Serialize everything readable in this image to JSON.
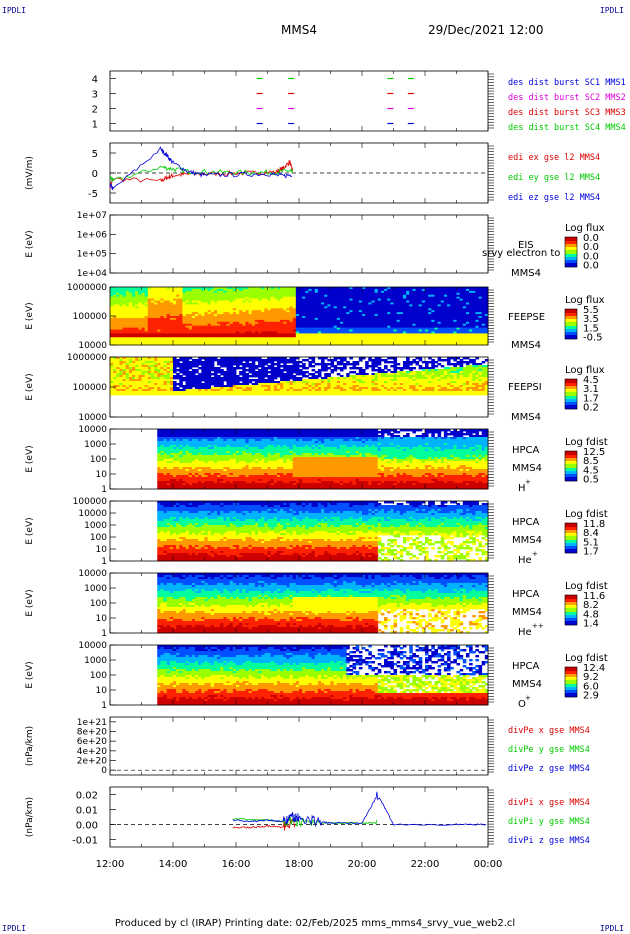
{
  "corners": {
    "top_left": "IPDLI",
    "top_right": "IPDLI",
    "bottom_left": "IPDLI",
    "bottom_right": "IPDLI"
  },
  "header": {
    "spacecraft": "MMS4",
    "datetime": "29/Dec/2021 12:00"
  },
  "footer": {
    "text": "Produced by cl (IRAP)    Printing date: 02/Feb/2025    mms_mms4_srvy_vue_web2.cl"
  },
  "colors": {
    "red": "#dd0000",
    "magenta": "#dd00dd",
    "green": "#00cc00",
    "blue": "#0000dd",
    "spectral": [
      "#0000cc",
      "#0050ff",
      "#00b4ff",
      "#00ff9a",
      "#9aff00",
      "#ffff00",
      "#ff9900",
      "#ff2200",
      "#cc0000"
    ]
  },
  "chart_data": [
    {
      "type": "scatter",
      "panel": "burst",
      "yticks": [
        "1",
        "2",
        "3",
        "4"
      ],
      "ylim": [
        0.5,
        4.5
      ],
      "xlim": [
        12,
        24
      ],
      "series": [
        {
          "name": "des dist burst SC1 MMS1",
          "color": "#0000dd",
          "y": 1,
          "x": [
            16.75,
            17.75,
            20.9,
            21.55
          ]
        },
        {
          "name": "des dist burst SC2 MMS2",
          "color": "#dd00dd",
          "y": 2,
          "x": [
            16.75,
            17.75,
            20.9,
            21.55
          ]
        },
        {
          "name": "des dist burst SC3 MMS3",
          "color": "#dd0000",
          "y": 3,
          "x": [
            16.75,
            17.75,
            20.9,
            21.55
          ]
        },
        {
          "name": "des dist burst SC4 MMS4",
          "color": "#00cc00",
          "y": 4,
          "x": [
            16.75,
            17.75,
            20.9,
            21.55
          ]
        }
      ]
    },
    {
      "type": "line",
      "panel": "edi",
      "ylabel": "(mV/m)",
      "yticks": [
        "5",
        "0",
        "-5"
      ],
      "ylim": [
        -7.5,
        7.5
      ],
      "xlim": [
        12,
        24
      ],
      "series": [
        {
          "name": "edi ex gse l2 MMS4",
          "color": "#dd0000",
          "x": [
            12.0,
            12.1,
            13.6,
            13.8,
            14.0,
            14.5,
            15.5,
            16.5,
            17.3,
            17.5,
            17.7,
            17.8
          ],
          "y": [
            -3.5,
            -1.5,
            -2.0,
            -1.2,
            -0.6,
            -0.3,
            -0.1,
            0.0,
            0.3,
            1.2,
            2.8,
            0.4
          ]
        },
        {
          "name": "edi ey gse l2 MMS4",
          "color": "#00cc00",
          "x": [
            12.0,
            12.1,
            13.6,
            14.0,
            14.5,
            15.5,
            16.5,
            17.3,
            17.7,
            17.8
          ],
          "y": [
            -1.0,
            -2.0,
            1.5,
            1.0,
            0.4,
            0.2,
            0.1,
            0.2,
            0.6,
            0.0
          ]
        },
        {
          "name": "edi ez gse l2 MMS4",
          "color": "#0000dd",
          "x": [
            12.0,
            12.1,
            13.6,
            13.8,
            14.0,
            14.5,
            15.0,
            16.0,
            17.0,
            17.5,
            17.8
          ],
          "y": [
            -3.0,
            -4.0,
            6.0,
            4.5,
            2.5,
            0.3,
            -0.6,
            -0.4,
            -0.2,
            -0.8,
            -0.3
          ]
        }
      ]
    },
    {
      "type": "heatmap",
      "panel": "eis",
      "ylabel": "E (eV)",
      "yticks": [
        "1e+07",
        "1e+06",
        "1e+05",
        "1e+04"
      ],
      "logrange": [
        4,
        7
      ],
      "data_xlim": null,
      "labels": [
        "EIS",
        "srvy electron to",
        "MMS4"
      ],
      "cbar_title": "Log flux",
      "cbar_ticks": [
        "0.0",
        "0.0",
        "0.0",
        "0.0"
      ],
      "xlim": [
        12,
        24
      ]
    },
    {
      "type": "heatmap",
      "panel": "feepse",
      "ylabel": "E (eV)",
      "yticks": [
        "1000000",
        "100000",
        "10000"
      ],
      "logrange": [
        4,
        6
      ],
      "data_xlim": [
        12,
        24
      ],
      "labels": [
        "FEEPSE",
        "MMS4"
      ],
      "cbar_title": "Log flux",
      "cbar_ticks": [
        "5.5",
        "3.5",
        "1.5",
        "-0.5"
      ],
      "xlim": [
        12,
        24
      ]
    },
    {
      "type": "heatmap",
      "panel": "feepsi",
      "ylabel": "E (eV)",
      "yticks": [
        "1000000",
        "100000",
        "10000"
      ],
      "logrange": [
        4,
        6
      ],
      "data_xlim": [
        12,
        24
      ],
      "labels": [
        "FEEPSI",
        "MMS4"
      ],
      "cbar_title": "Log flux",
      "cbar_ticks": [
        "4.5",
        "3.1",
        "1.7",
        "0.2"
      ],
      "xlim": [
        12,
        24
      ]
    },
    {
      "type": "heatmap",
      "panel": "hpca_h",
      "ylabel": "E (eV)",
      "yticks": [
        "10000",
        "1000",
        "100",
        "10",
        "1"
      ],
      "logrange": [
        0,
        4.6
      ],
      "data_xlim": [
        13.5,
        24
      ],
      "labels": [
        "HPCA",
        "MMS4",
        "H",
        "+"
      ],
      "cbar_title": "Log fdist",
      "cbar_ticks": [
        "12.5",
        "8.5",
        "4.5",
        "0.5"
      ],
      "xlim": [
        12,
        24
      ]
    },
    {
      "type": "heatmap",
      "panel": "hpca_he",
      "ylabel": "E (eV)",
      "yticks": [
        "100000",
        "10000",
        "1000",
        "100",
        "10",
        "1"
      ],
      "logrange": [
        0,
        5
      ],
      "data_xlim": [
        13.5,
        24
      ],
      "labels": [
        "HPCA",
        "MMS4",
        "He",
        "+"
      ],
      "cbar_title": "Log fdist",
      "cbar_ticks": [
        "11.8",
        "8.4",
        "5.1",
        "1.7"
      ],
      "xlim": [
        12,
        24
      ]
    },
    {
      "type": "heatmap",
      "panel": "hpca_hepp",
      "ylabel": "E (eV)",
      "yticks": [
        "10000",
        "1000",
        "100",
        "10",
        "1"
      ],
      "logrange": [
        0,
        4.6
      ],
      "data_xlim": [
        13.5,
        24
      ],
      "labels": [
        "HPCA",
        "MMS4",
        "He",
        "++"
      ],
      "cbar_title": "Log fdist",
      "cbar_ticks": [
        "11.6",
        "8.2",
        "4.8",
        "1.4"
      ],
      "xlim": [
        12,
        24
      ]
    },
    {
      "type": "heatmap",
      "panel": "hpca_o",
      "ylabel": "E (eV)",
      "yticks": [
        "10000",
        "1000",
        "100",
        "10",
        "1"
      ],
      "logrange": [
        0,
        4.6
      ],
      "data_xlim": [
        13.5,
        24
      ],
      "labels": [
        "HPCA",
        "MMS4",
        "O",
        "+"
      ],
      "cbar_title": "Log fdist",
      "cbar_ticks": [
        "12.4",
        "9.2",
        "6.0",
        "2.9"
      ],
      "xlim": [
        12,
        24
      ]
    },
    {
      "type": "line",
      "panel": "divpe",
      "ylabel": "(nPa/km)",
      "yticks": [
        "1e+21",
        "8e+20",
        "6e+20",
        "4e+20",
        "2e+20",
        "0"
      ],
      "yvals": [
        1e+21,
        8e+20,
        6e+20,
        4e+20,
        2e+20,
        0
      ],
      "ylim": [
        -1e+20,
        1.1e+21
      ],
      "xlim": [
        12,
        24
      ],
      "series": [
        {
          "name": "divPe x gse MMS4",
          "color": "#dd0000",
          "x": [],
          "y": []
        },
        {
          "name": "divPe y gse MMS4",
          "color": "#00cc00",
          "x": [],
          "y": []
        },
        {
          "name": "divPe z gse MMS4",
          "color": "#0000dd",
          "x": [],
          "y": []
        }
      ]
    },
    {
      "type": "line",
      "panel": "divpi",
      "ylabel": "(nPa/km)",
      "yticks": [
        "0.02",
        "0.01",
        "0.00",
        "-0.01"
      ],
      "yvals": [
        0.02,
        0.01,
        0.0,
        -0.01
      ],
      "ylim": [
        -0.015,
        0.025
      ],
      "xlim": [
        12,
        24
      ],
      "xticks": [
        "12:00",
        "14:00",
        "16:00",
        "18:00",
        "20:00",
        "22:00",
        "00:00"
      ],
      "series": [
        {
          "name": "divPi x gse MMS4",
          "color": "#dd0000",
          "x": [
            15.9,
            16.5,
            17.0,
            17.5,
            17.9
          ],
          "y": [
            -0.002,
            -0.002,
            -0.001,
            -0.002,
            0.001
          ]
        },
        {
          "name": "divPi y gse MMS4",
          "color": "#00cc00",
          "x": [
            15.9,
            16.5,
            17.0,
            17.5,
            18.0,
            19.0,
            20.0,
            20.5
          ],
          "y": [
            0.004,
            0.003,
            0.003,
            0.002,
            0.002,
            0.001,
            0.001,
            0.001
          ]
        },
        {
          "name": "divPi z gse MMS4",
          "color": "#0000dd",
          "x": [
            15.9,
            16.5,
            17.0,
            17.5,
            17.8,
            18.0,
            18.5,
            19.0,
            20.0,
            20.5,
            21.0,
            23.0,
            24.0
          ],
          "y": [
            0.003,
            0.002,
            0.003,
            0.002,
            0.005,
            0.004,
            0.002,
            0.001,
            0.001,
            0.02,
            0.0,
            0.0,
            0.0
          ]
        }
      ]
    }
  ]
}
